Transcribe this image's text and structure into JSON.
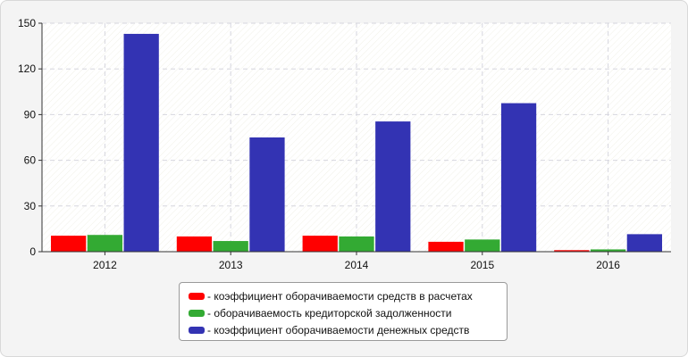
{
  "chart_data": {
    "type": "bar",
    "categories": [
      "2012",
      "2013",
      "2014",
      "2015",
      "2016"
    ],
    "series": [
      {
        "name": "- коэффициент оборачиваемости средств в расчетах",
        "color": "#ff0000",
        "values": [
          10.5,
          10.0,
          10.5,
          6.5,
          1.0
        ]
      },
      {
        "name": "- оборачиваемость кредиторской задолженности",
        "color": "#33aa33",
        "values": [
          11.0,
          7.0,
          10.0,
          8.0,
          1.5
        ]
      },
      {
        "name": "- коэффициент оборачиваемости денежных средств",
        "color": "#3333b3",
        "values": [
          143.0,
          75.0,
          85.5,
          97.5,
          11.5
        ]
      }
    ],
    "yticks": [
      "0",
      "30",
      "60",
      "90",
      "120",
      "150"
    ],
    "ylim": [
      0,
      150
    ],
    "grid": true,
    "legend_position": "bottom"
  }
}
